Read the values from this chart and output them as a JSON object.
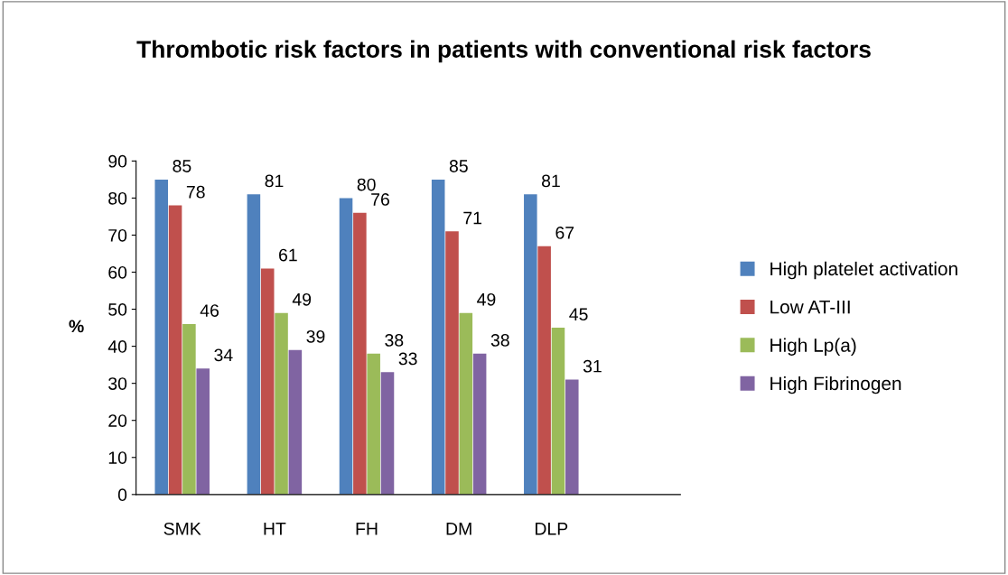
{
  "chart_data": {
    "type": "bar",
    "title": "Thrombotic risk factors in patients with conventional risk factors",
    "ylabel": "%",
    "categories": [
      "SMK",
      "HT",
      "FH",
      "DM",
      "DLP"
    ],
    "series": [
      {
        "name": "High platelet activation",
        "color": "#4f81bd",
        "values": [
          85,
          81,
          80,
          85,
          81
        ]
      },
      {
        "name": "Low AT-III",
        "color": "#c0504d",
        "values": [
          78,
          61,
          76,
          71,
          67
        ]
      },
      {
        "name": "High Lp(a)",
        "color": "#9bbb59",
        "values": [
          46,
          49,
          38,
          49,
          45
        ]
      },
      {
        "name": "High Fibrinogen",
        "color": "#8064a2",
        "values": [
          34,
          39,
          33,
          38,
          31
        ]
      }
    ],
    "ylim": [
      0,
      90
    ],
    "yticks": [
      0,
      10,
      20,
      30,
      40,
      50,
      60,
      70,
      80,
      90
    ],
    "grid": false,
    "legend": "right",
    "data_labels": true
  }
}
